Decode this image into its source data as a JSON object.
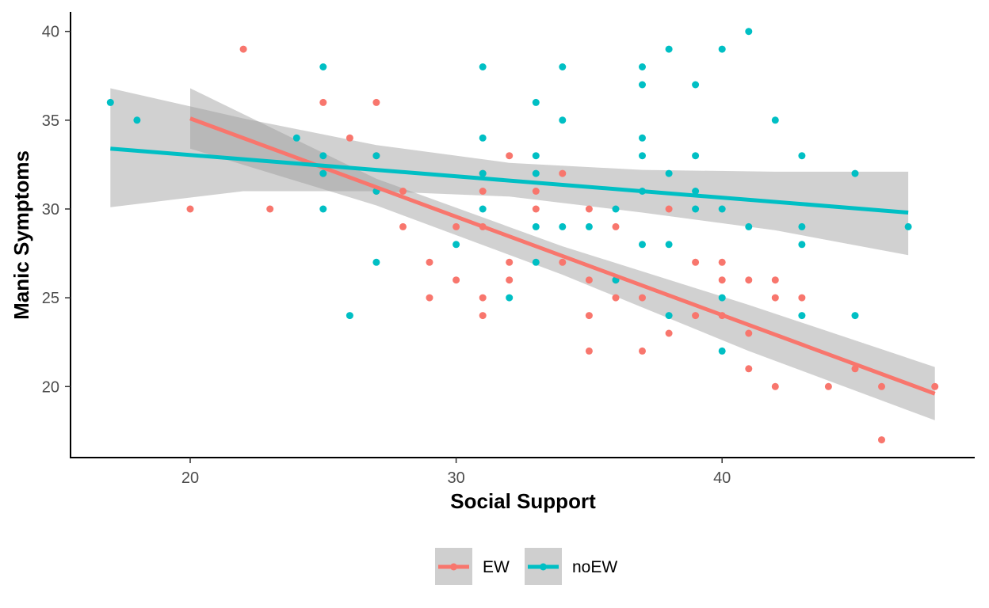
{
  "chart_data": {
    "type": "scatter",
    "xlabel": "Social Support",
    "ylabel": "Manic Symptoms",
    "xlim": [
      15.5,
      49.5
    ],
    "ylim": [
      16,
      41.1
    ],
    "xticks": [
      20,
      30,
      40
    ],
    "yticks": [
      20,
      25,
      30,
      35,
      40
    ],
    "grid": false,
    "legend_position": "bottom",
    "series": [
      {
        "name": "EW",
        "color": "#F8766D",
        "points": [
          [
            20,
            30
          ],
          [
            22,
            39
          ],
          [
            23,
            30
          ],
          [
            25,
            36
          ],
          [
            25,
            32
          ],
          [
            26,
            34
          ],
          [
            27,
            36
          ],
          [
            27,
            33
          ],
          [
            27,
            31
          ],
          [
            28,
            31
          ],
          [
            28,
            29
          ],
          [
            29,
            27
          ],
          [
            29,
            25
          ],
          [
            30,
            29
          ],
          [
            30,
            26
          ],
          [
            31,
            32
          ],
          [
            31,
            31
          ],
          [
            31,
            29
          ],
          [
            31,
            25
          ],
          [
            31,
            24
          ],
          [
            32,
            33
          ],
          [
            32,
            27
          ],
          [
            32,
            26
          ],
          [
            33,
            31
          ],
          [
            33,
            30
          ],
          [
            34,
            32
          ],
          [
            34,
            27
          ],
          [
            35,
            30
          ],
          [
            35,
            26
          ],
          [
            35,
            24
          ],
          [
            35,
            22
          ],
          [
            36,
            29
          ],
          [
            36,
            26
          ],
          [
            36,
            25
          ],
          [
            37,
            25
          ],
          [
            37,
            22
          ],
          [
            38,
            30
          ],
          [
            38,
            23
          ],
          [
            39,
            27
          ],
          [
            39,
            24
          ],
          [
            40,
            27
          ],
          [
            40,
            26
          ],
          [
            40,
            24
          ],
          [
            41,
            26
          ],
          [
            41,
            23
          ],
          [
            41,
            21
          ],
          [
            42,
            26
          ],
          [
            42,
            25
          ],
          [
            42,
            20
          ],
          [
            43,
            25
          ],
          [
            44,
            20
          ],
          [
            45,
            21
          ],
          [
            46,
            20
          ],
          [
            46,
            17
          ],
          [
            48,
            20
          ]
        ],
        "fit": {
          "x_range": [
            20,
            48
          ],
          "y_start": 35.1,
          "y_end": 19.6
        },
        "ci_upper": [
          [
            20,
            36.8
          ],
          [
            27,
            31.7
          ],
          [
            34,
            27.9
          ],
          [
            41,
            24.6
          ],
          [
            48,
            21.1
          ]
        ],
        "ci_lower": [
          [
            20,
            33.4
          ],
          [
            27,
            30.2
          ],
          [
            34,
            26.3
          ],
          [
            41,
            22.0
          ],
          [
            48,
            18.1
          ]
        ]
      },
      {
        "name": "noEW",
        "color": "#00BFC4",
        "points": [
          [
            17,
            36
          ],
          [
            18,
            35
          ],
          [
            24,
            34
          ],
          [
            25,
            38
          ],
          [
            25,
            33
          ],
          [
            25,
            32
          ],
          [
            25,
            30
          ],
          [
            26,
            24
          ],
          [
            27,
            33
          ],
          [
            27,
            31
          ],
          [
            27,
            27
          ],
          [
            30,
            28
          ],
          [
            31,
            38
          ],
          [
            31,
            34
          ],
          [
            31,
            32
          ],
          [
            31,
            30
          ],
          [
            32,
            25
          ],
          [
            33,
            36
          ],
          [
            33,
            33
          ],
          [
            33,
            32
          ],
          [
            33,
            29
          ],
          [
            33,
            27
          ],
          [
            34,
            38
          ],
          [
            34,
            35
          ],
          [
            34,
            29
          ],
          [
            35,
            29
          ],
          [
            36,
            30
          ],
          [
            36,
            26
          ],
          [
            37,
            38
          ],
          [
            37,
            37
          ],
          [
            37,
            34
          ],
          [
            37,
            33
          ],
          [
            37,
            31
          ],
          [
            37,
            28
          ],
          [
            38,
            39
          ],
          [
            38,
            32
          ],
          [
            38,
            28
          ],
          [
            38,
            24
          ],
          [
            39,
            37
          ],
          [
            39,
            33
          ],
          [
            39,
            31
          ],
          [
            39,
            30
          ],
          [
            40,
            39
          ],
          [
            40,
            30
          ],
          [
            40,
            25
          ],
          [
            40,
            22
          ],
          [
            41,
            40
          ],
          [
            41,
            29
          ],
          [
            42,
            35
          ],
          [
            43,
            33
          ],
          [
            43,
            29
          ],
          [
            43,
            28
          ],
          [
            43,
            24
          ],
          [
            45,
            32
          ],
          [
            45,
            24
          ],
          [
            47,
            29
          ]
        ],
        "fit": {
          "x_range": [
            17,
            47
          ],
          "y_start": 33.4,
          "y_end": 29.8
        },
        "ci_upper": [
          [
            17,
            36.8
          ],
          [
            22,
            35.1
          ],
          [
            27,
            33.6
          ],
          [
            32,
            32.6
          ],
          [
            37,
            32.2
          ],
          [
            42,
            32.1
          ],
          [
            47,
            32.1
          ]
        ],
        "ci_lower": [
          [
            17,
            30.1
          ],
          [
            22,
            31.0
          ],
          [
            27,
            31.0
          ],
          [
            32,
            30.7
          ],
          [
            37,
            29.8
          ],
          [
            42,
            28.8
          ],
          [
            47,
            27.4
          ]
        ]
      }
    ]
  }
}
